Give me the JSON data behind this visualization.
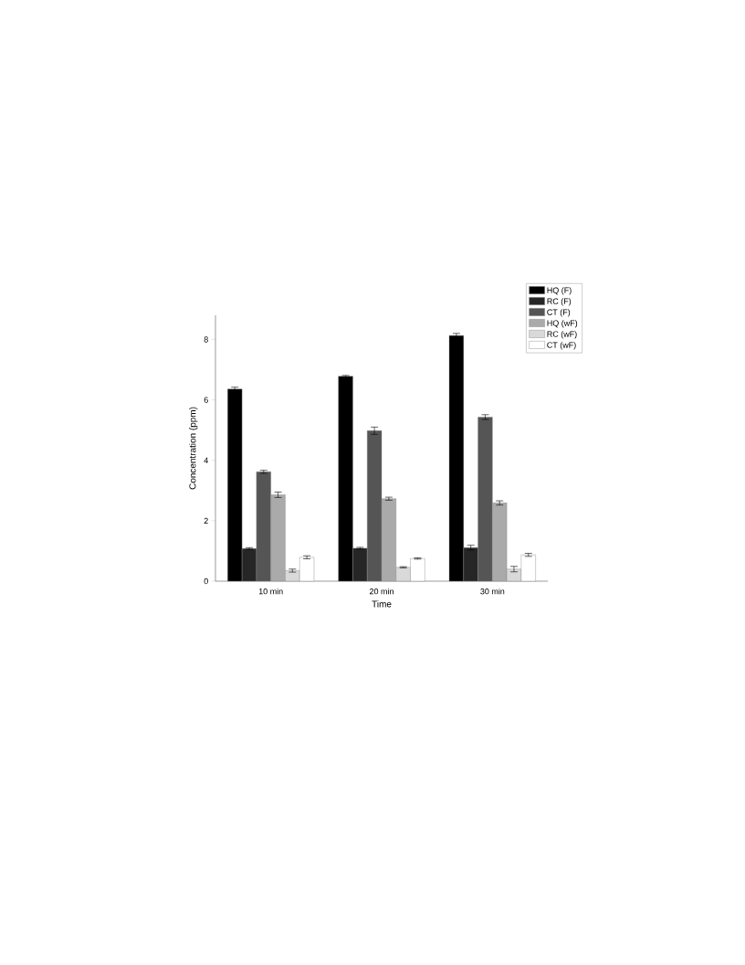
{
  "chart_data": {
    "type": "bar",
    "xlabel": "Time",
    "ylabel": "Concentration (ppm)",
    "categories": [
      "10 min",
      "20 min",
      "30 min"
    ],
    "series": [
      {
        "name": "HQ (F)",
        "color": "#000000",
        "values": [
          6.36,
          6.78,
          8.13
        ],
        "errors": [
          0.06,
          0.03,
          0.07
        ]
      },
      {
        "name": "RC (F)",
        "color": "#262626",
        "values": [
          1.08,
          1.09,
          1.11
        ],
        "errors": [
          0.03,
          0.03,
          0.08
        ]
      },
      {
        "name": "CT (F)",
        "color": "#555555",
        "values": [
          3.62,
          4.98,
          5.43
        ],
        "errors": [
          0.05,
          0.12,
          0.08
        ]
      },
      {
        "name": "HQ (wF)",
        "color": "#aaaaaa",
        "values": [
          2.86,
          2.73,
          2.59
        ],
        "errors": [
          0.09,
          0.05,
          0.07
        ]
      },
      {
        "name": "RC (wF)",
        "color": "#d9d9d9",
        "values": [
          0.35,
          0.46,
          0.4
        ],
        "errors": [
          0.05,
          0.02,
          0.09
        ]
      },
      {
        "name": "CT (wF)",
        "color": "#ffffff",
        "values": [
          0.79,
          0.75,
          0.87
        ],
        "errors": [
          0.05,
          0.02,
          0.05
        ]
      }
    ],
    "ylim": [
      0,
      8.8
    ],
    "yticks": [
      0,
      2,
      4,
      6,
      8
    ],
    "legend": "top right"
  }
}
